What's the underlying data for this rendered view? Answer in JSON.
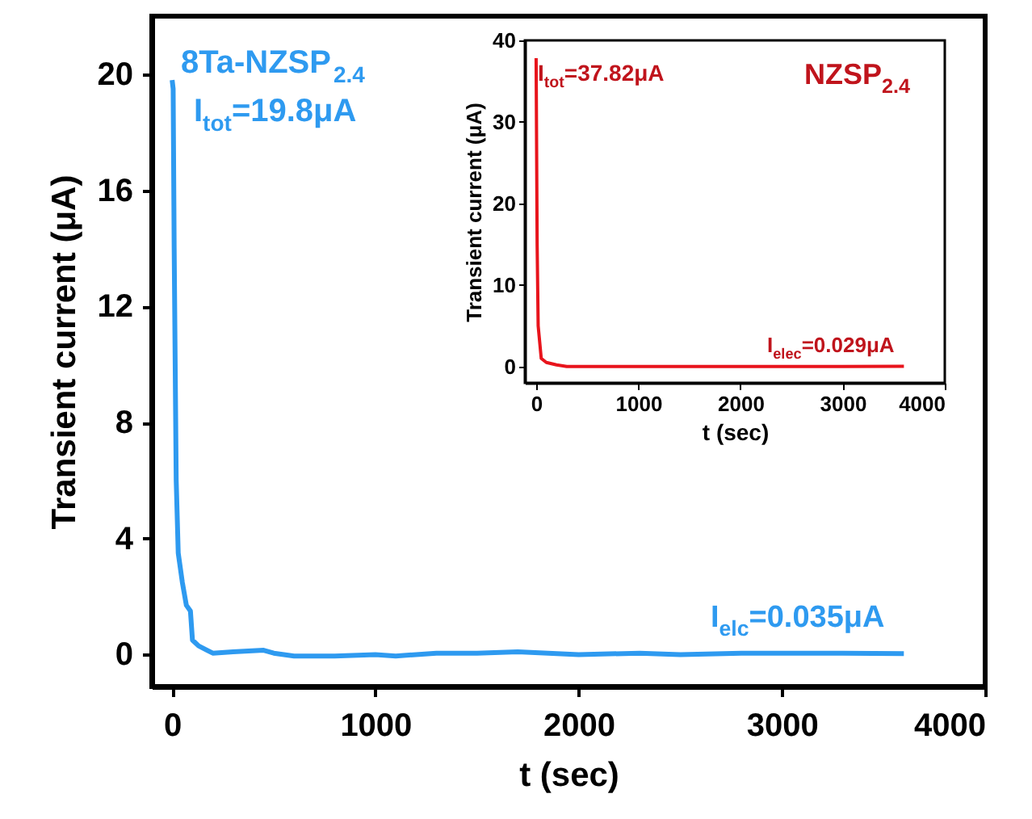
{
  "chart_data": [
    {
      "type": "line",
      "xlabel": "t (sec)",
      "ylabel": "Transient current (μA)",
      "xlim": [
        -100,
        4000
      ],
      "ylim": [
        -1.1,
        22
      ],
      "xticks": [
        0,
        1000,
        2000,
        3000,
        4000
      ],
      "yticks": [
        0,
        4,
        8,
        12,
        16,
        20
      ],
      "grid": false,
      "x": [
        0,
        5,
        10,
        20,
        30,
        50,
        70,
        90,
        100,
        130,
        200,
        300,
        450,
        500,
        600,
        800,
        1000,
        1100,
        1300,
        1500,
        1700,
        2000,
        2300,
        2500,
        2800,
        3000,
        3300,
        3600
      ],
      "series": [
        {
          "color": "#2e9af0",
          "values": [
            19.8,
            19.5,
            14,
            6,
            3.5,
            2.5,
            1.7,
            1.5,
            0.5,
            0.3,
            0.05,
            0.1,
            0.15,
            0.05,
            -0.05,
            -0.05,
            0,
            -0.05,
            0.05,
            0.05,
            0.1,
            0,
            0.05,
            0,
            0.05,
            0.05,
            0.05,
            0.035
          ]
        }
      ],
      "annotations": [
        "8Ta-NZSP$_{2.4}$",
        "I$_{tot}$=19.8μA",
        "I$_{elc}$=0.035μA"
      ]
    },
    {
      "type": "line",
      "xlabel": "t (sec)",
      "ylabel": "Transient current (μA)",
      "xlim": [
        -110,
        4000
      ],
      "ylim": [
        -2,
        40
      ],
      "xticks": [
        0,
        1000,
        2000,
        3000,
        4000
      ],
      "yticks": [
        0,
        10,
        20,
        30,
        40
      ],
      "grid": false,
      "x": [
        0,
        10,
        20,
        50,
        100,
        200,
        300,
        1000,
        2000,
        3000,
        3600
      ],
      "series": [
        {
          "color": "#e8141c",
          "values": [
            37.82,
            15,
            5,
            1,
            0.5,
            0.2,
            0,
            0,
            0,
            0,
            0.029
          ]
        }
      ],
      "annotations": [
        "I$_{tot}$=37.82μA",
        "NZSP$_{2.4}$",
        "I$_{elec}$=0.029μA"
      ]
    }
  ]
}
